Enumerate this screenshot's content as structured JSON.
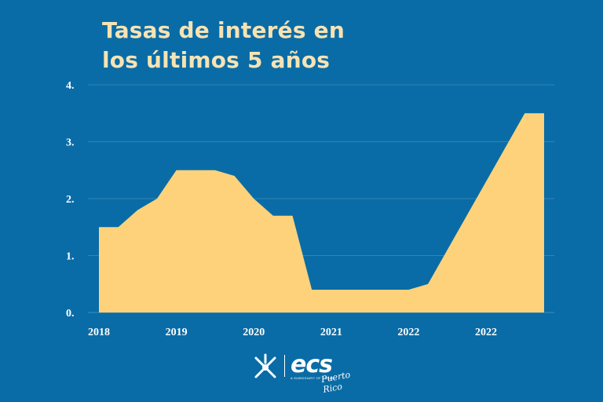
{
  "header": {
    "title_line1": "Tasas de interés en",
    "title_line2": "los últimos 5 años"
  },
  "chart_data": {
    "type": "area",
    "title": "Tasas de interés en los últimos 5 años",
    "xlabel": "",
    "ylabel": "",
    "ylim": [
      0,
      4
    ],
    "grid": true,
    "y_ticks": [
      "0.",
      "1.",
      "2.",
      "3.",
      "4."
    ],
    "x_tick_labels": [
      "2018",
      "2019",
      "2020",
      "2021",
      "2022",
      "2022"
    ],
    "x": [
      0,
      0.25,
      0.5,
      0.75,
      1,
      1.25,
      1.5,
      1.75,
      2,
      2.25,
      2.5,
      2.75,
      3,
      3.25,
      3.5,
      3.75,
      4,
      4.25,
      4.5,
      4.75,
      5,
      5.25,
      5.5,
      5.75
    ],
    "values": [
      1.5,
      1.5,
      1.8,
      2.0,
      2.5,
      2.5,
      2.5,
      2.4,
      2.0,
      1.7,
      1.7,
      0.4,
      0.4,
      0.4,
      0.4,
      0.4,
      0.4,
      0.5,
      1.1,
      1.7,
      2.3,
      2.9,
      3.5,
      3.5
    ],
    "series_color": "#fdd27a",
    "background": "#0a6ca6"
  },
  "logo": {
    "word": "ecs",
    "subtitle": "A SUBSIDIARY OF CABAB",
    "script": "Puerto Rico",
    "icon": "ecs-star-icon"
  }
}
